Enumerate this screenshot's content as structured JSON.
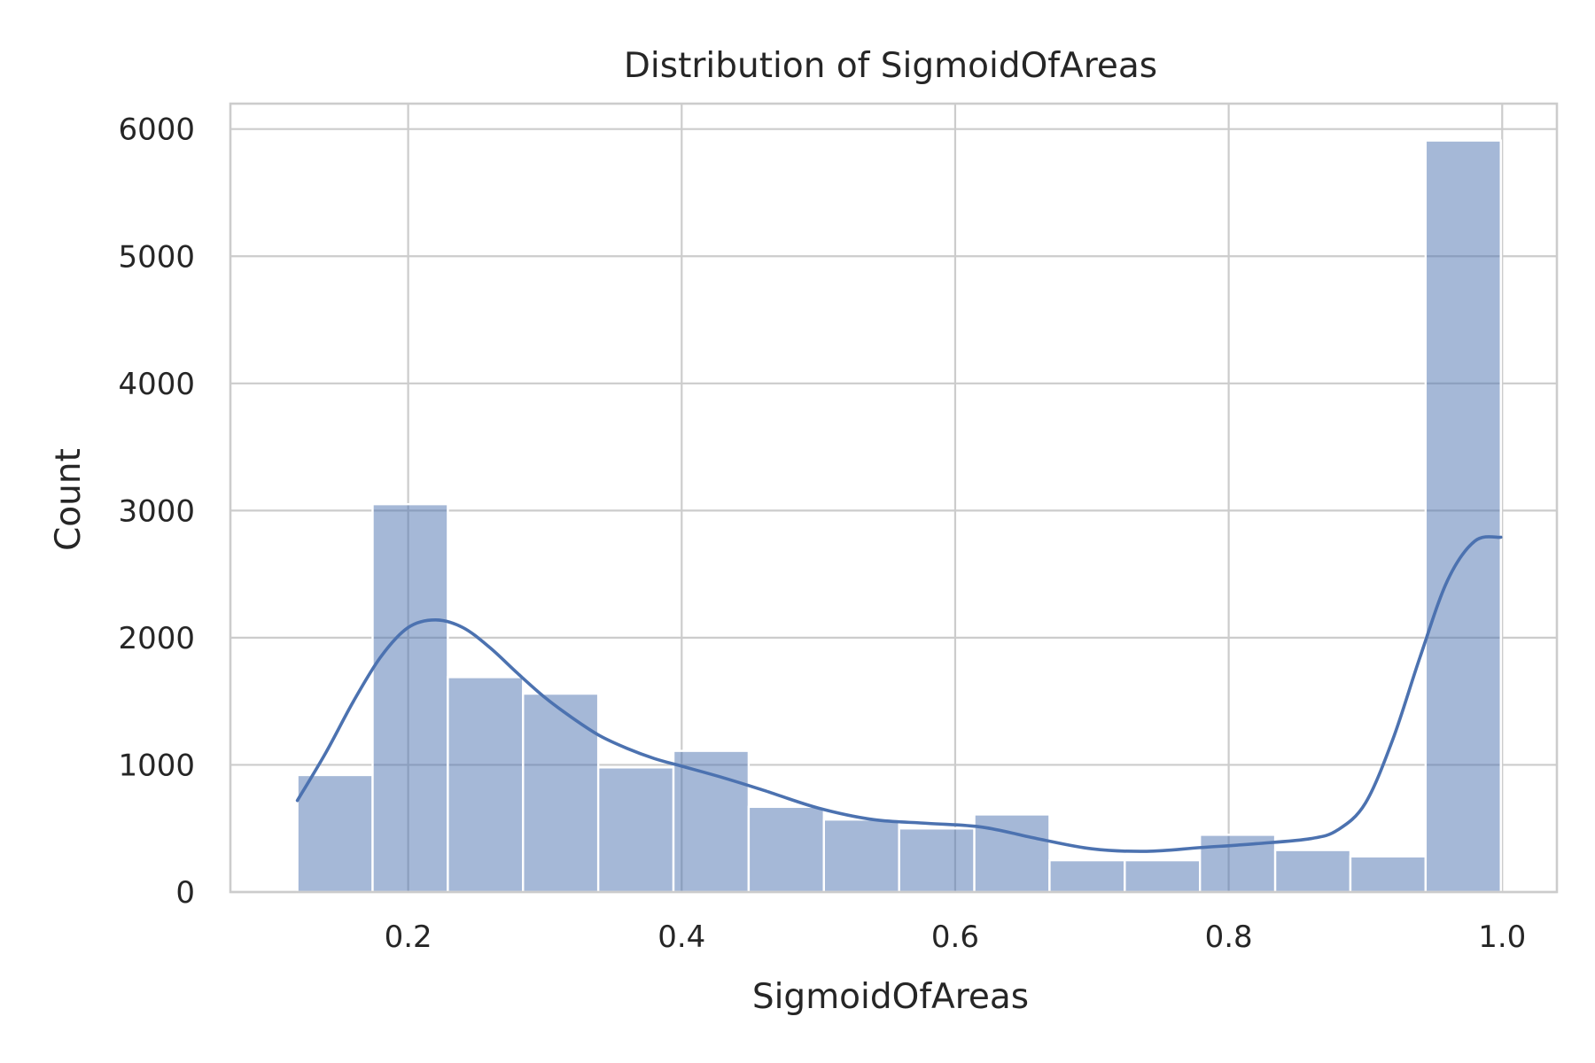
{
  "chart_data": {
    "type": "bar",
    "subtype": "histogram-with-kde",
    "title": "Distribution of SigmoidOfAreas",
    "xlabel": "SigmoidOfAreas",
    "ylabel": "Count",
    "xlim": [
      0.07,
      1.04
    ],
    "ylim": [
      0,
      6200
    ],
    "xticks": [
      0.2,
      0.4,
      0.6,
      0.8,
      1.0
    ],
    "xtick_labels": [
      "0.2",
      "0.4",
      "0.6",
      "0.8",
      "1.0"
    ],
    "yticks": [
      0,
      1000,
      2000,
      3000,
      4000,
      5000,
      6000
    ],
    "ytick_labels": [
      "0",
      "1000",
      "2000",
      "3000",
      "4000",
      "5000",
      "6000"
    ],
    "grid": true,
    "bar_color": "#4c72b0",
    "bins": [
      {
        "x0": 0.119,
        "x1": 0.174,
        "count": 920
      },
      {
        "x0": 0.174,
        "x1": 0.229,
        "count": 3050
      },
      {
        "x0": 0.229,
        "x1": 0.284,
        "count": 1690
      },
      {
        "x0": 0.284,
        "x1": 0.339,
        "count": 1560
      },
      {
        "x0": 0.339,
        "x1": 0.394,
        "count": 980
      },
      {
        "x0": 0.394,
        "x1": 0.449,
        "count": 1110
      },
      {
        "x0": 0.449,
        "x1": 0.504,
        "count": 670
      },
      {
        "x0": 0.504,
        "x1": 0.559,
        "count": 570
      },
      {
        "x0": 0.559,
        "x1": 0.614,
        "count": 500
      },
      {
        "x0": 0.614,
        "x1": 0.669,
        "count": 610
      },
      {
        "x0": 0.669,
        "x1": 0.724,
        "count": 250
      },
      {
        "x0": 0.724,
        "x1": 0.779,
        "count": 250
      },
      {
        "x0": 0.779,
        "x1": 0.834,
        "count": 450
      },
      {
        "x0": 0.834,
        "x1": 0.889,
        "count": 330
      },
      {
        "x0": 0.889,
        "x1": 0.944,
        "count": 280
      },
      {
        "x0": 0.944,
        "x1": 0.999,
        "count": 5910
      }
    ],
    "kde": {
      "x": [
        0.119,
        0.14,
        0.16,
        0.18,
        0.2,
        0.22,
        0.24,
        0.26,
        0.28,
        0.3,
        0.32,
        0.34,
        0.36,
        0.38,
        0.4,
        0.43,
        0.46,
        0.5,
        0.54,
        0.58,
        0.62,
        0.66,
        0.7,
        0.74,
        0.78,
        0.82,
        0.86,
        0.88,
        0.9,
        0.92,
        0.94,
        0.96,
        0.98,
        0.999
      ],
      "y": [
        720,
        1100,
        1500,
        1850,
        2080,
        2140,
        2080,
        1920,
        1720,
        1530,
        1370,
        1230,
        1130,
        1050,
        990,
        900,
        800,
        660,
        570,
        540,
        510,
        420,
        340,
        320,
        350,
        380,
        420,
        490,
        700,
        1200,
        1850,
        2450,
        2760,
        2790
      ]
    }
  }
}
